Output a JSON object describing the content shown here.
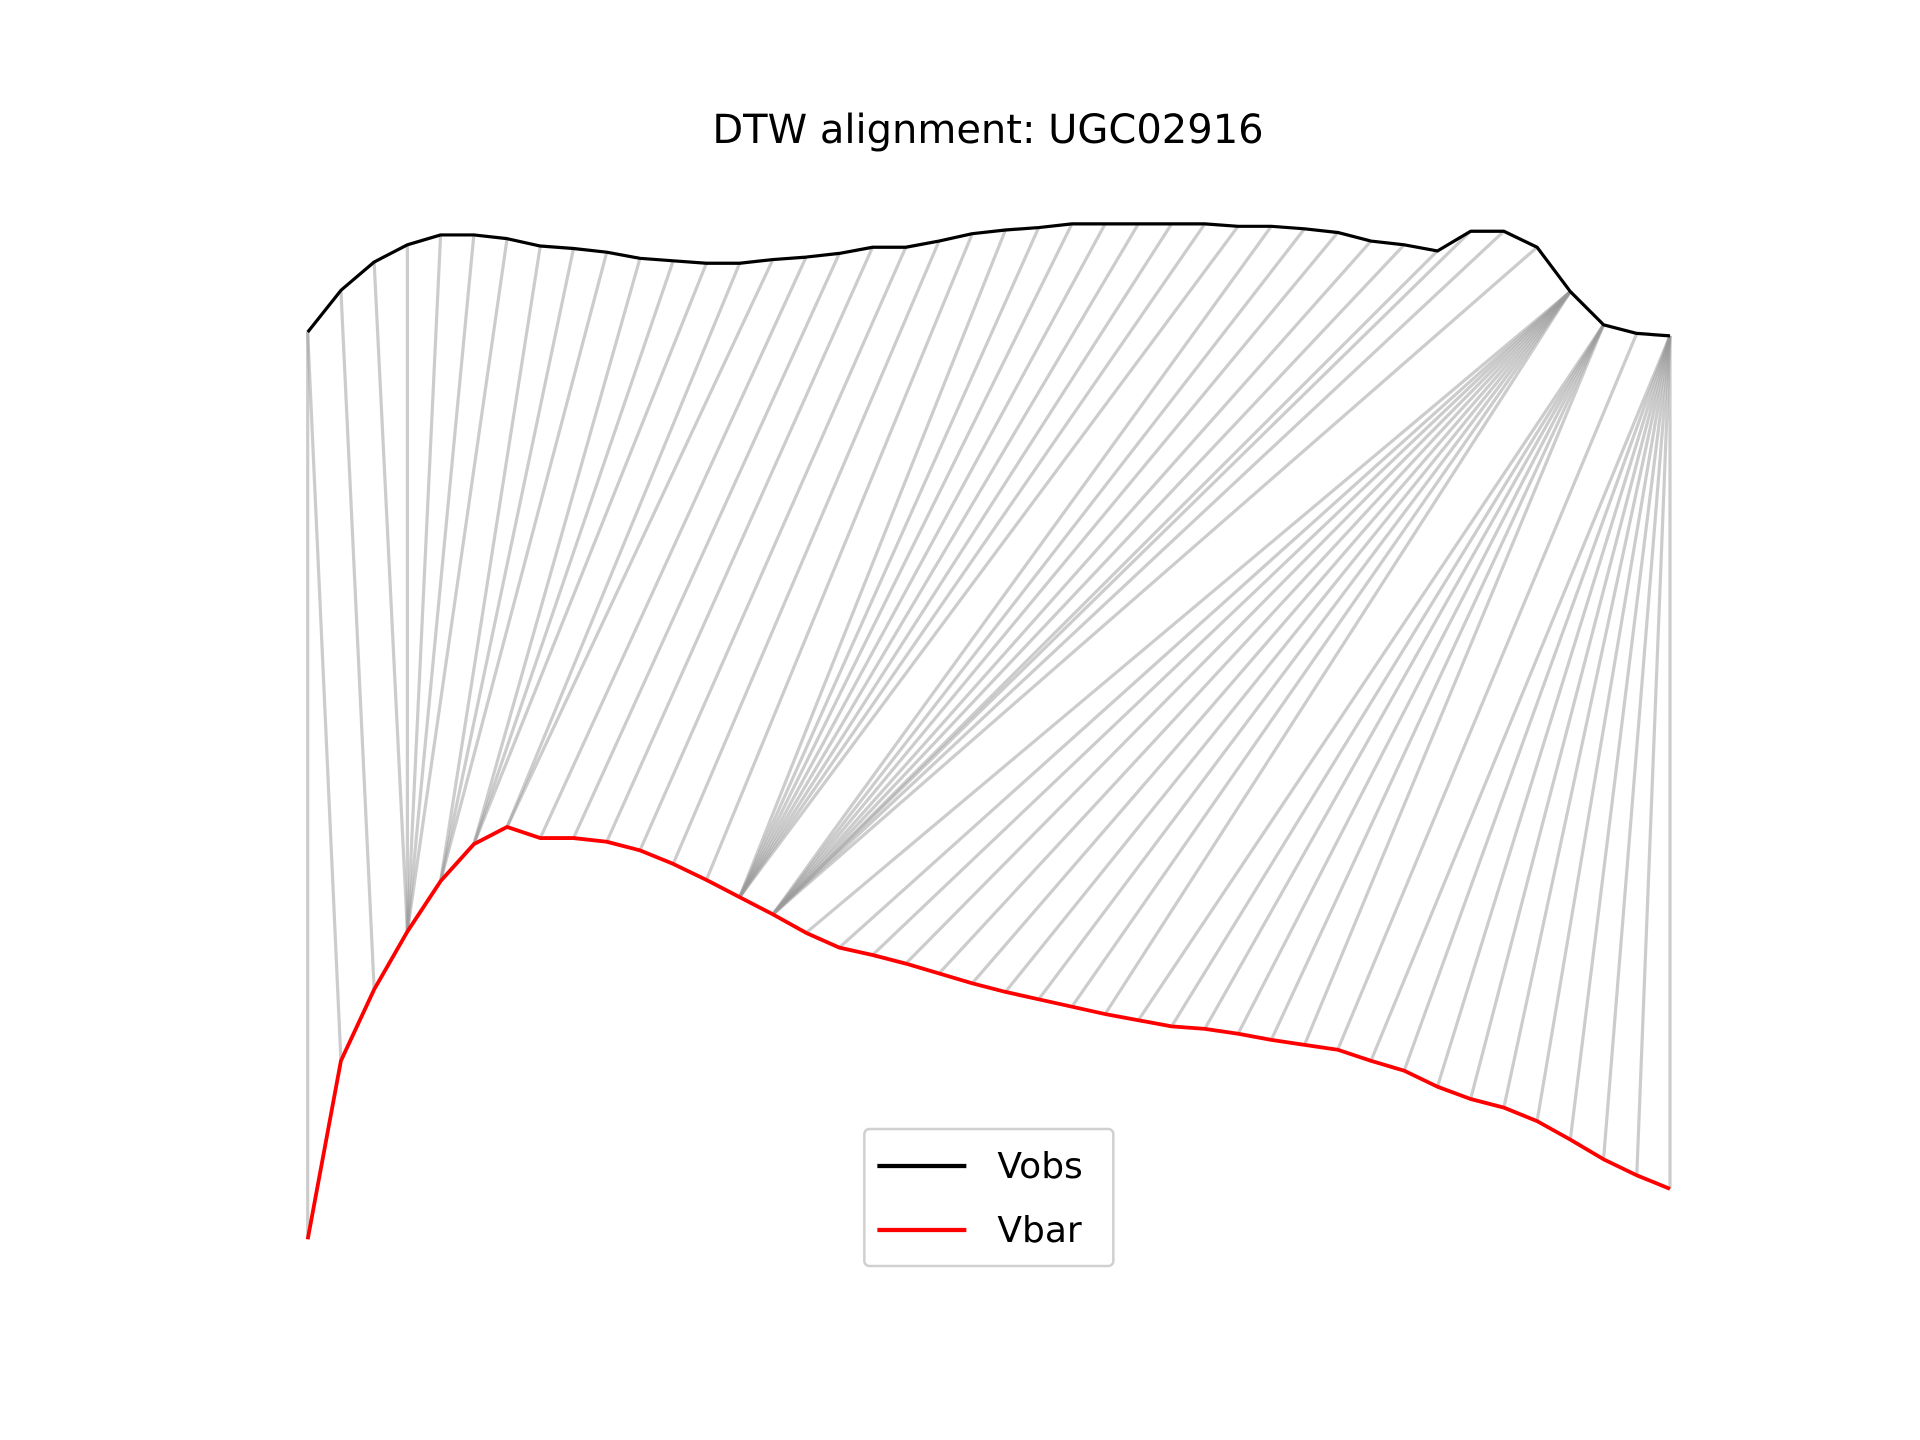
{
  "chart_data": {
    "type": "line",
    "title": "DTW alignment: UGC02916",
    "x": [
      0,
      1,
      2,
      3,
      4,
      5,
      6,
      7,
      8,
      9,
      10,
      11,
      12,
      13,
      14,
      15,
      16,
      17,
      18,
      19,
      20,
      21,
      22,
      23,
      24,
      25,
      26,
      27,
      28,
      29,
      30,
      31,
      32,
      33,
      34,
      35,
      36,
      37,
      38,
      39,
      40,
      41
    ],
    "series": [
      {
        "name": "Vobs",
        "color": "#000000",
        "values": [
          740,
          774,
          797,
          811,
          819,
          819,
          816,
          810,
          808,
          805,
          800,
          798,
          796,
          796,
          799,
          801,
          804,
          809,
          809,
          814,
          820,
          823,
          825,
          828,
          828,
          828,
          828,
          828,
          826,
          826,
          824,
          821,
          814,
          811,
          806,
          822,
          822,
          809,
          773,
          746,
          739,
          737
        ]
      },
      {
        "name": "Vbar",
        "color": "#ff0000",
        "values": [
          3,
          148,
          206,
          253,
          294,
          324,
          338,
          329,
          329,
          326,
          319,
          308,
          295,
          281,
          267,
          252,
          240,
          234,
          227,
          219,
          211,
          204,
          198,
          192,
          186,
          181,
          176,
          174,
          170,
          165,
          161,
          157,
          148,
          140,
          127,
          117,
          110,
          99,
          84,
          68,
          55,
          44
        ]
      }
    ],
    "alignment": [
      [
        0,
        0
      ],
      [
        0,
        1
      ],
      [
        1,
        2
      ],
      [
        2,
        3
      ],
      [
        3,
        3
      ],
      [
        4,
        3
      ],
      [
        5,
        3
      ],
      [
        6,
        3
      ],
      [
        7,
        4
      ],
      [
        8,
        4
      ],
      [
        9,
        4
      ],
      [
        10,
        5
      ],
      [
        11,
        5
      ],
      [
        12,
        5
      ],
      [
        13,
        6
      ],
      [
        14,
        6
      ],
      [
        15,
        7
      ],
      [
        16,
        8
      ],
      [
        17,
        9
      ],
      [
        18,
        10
      ],
      [
        19,
        11
      ],
      [
        20,
        12
      ],
      [
        21,
        13
      ],
      [
        22,
        13
      ],
      [
        23,
        13
      ],
      [
        24,
        13
      ],
      [
        25,
        13
      ],
      [
        26,
        13
      ],
      [
        27,
        13
      ],
      [
        28,
        13
      ],
      [
        29,
        14
      ],
      [
        30,
        14
      ],
      [
        31,
        14
      ],
      [
        32,
        14
      ],
      [
        33,
        14
      ],
      [
        34,
        14
      ],
      [
        35,
        14
      ],
      [
        36,
        14
      ],
      [
        37,
        14
      ],
      [
        38,
        15
      ],
      [
        38,
        16
      ],
      [
        38,
        17
      ],
      [
        38,
        18
      ],
      [
        38,
        19
      ],
      [
        38,
        20
      ],
      [
        38,
        21
      ],
      [
        38,
        22
      ],
      [
        38,
        23
      ],
      [
        38,
        24
      ],
      [
        39,
        25
      ],
      [
        39,
        26
      ],
      [
        39,
        27
      ],
      [
        39,
        28
      ],
      [
        39,
        29
      ],
      [
        39,
        30
      ],
      [
        40,
        31
      ],
      [
        41,
        32
      ],
      [
        41,
        33
      ],
      [
        41,
        34
      ],
      [
        41,
        35
      ],
      [
        41,
        36
      ],
      [
        41,
        37
      ],
      [
        41,
        38
      ],
      [
        41,
        39
      ],
      [
        41,
        40
      ],
      [
        41,
        41
      ]
    ],
    "alignment_color": "#999999",
    "xlim": [
      0,
      41
    ],
    "ylim": [
      0,
      830
    ],
    "legend": "lower center"
  }
}
